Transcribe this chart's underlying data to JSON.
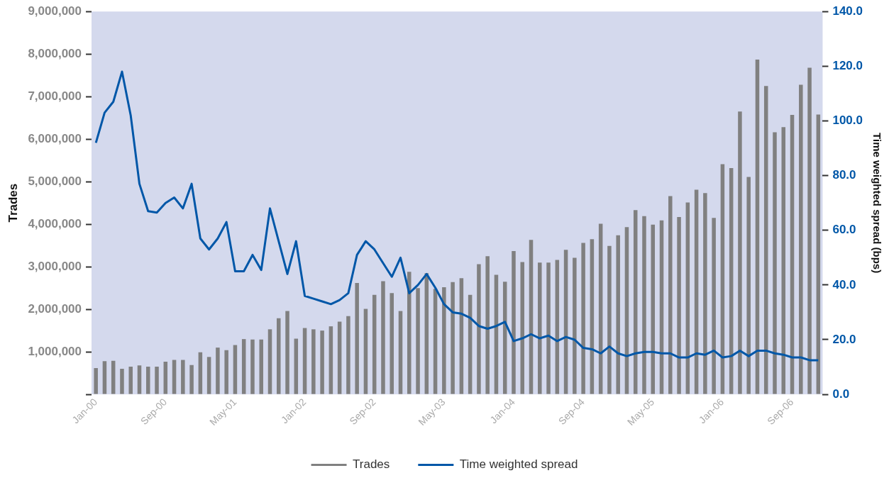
{
  "chart_data": {
    "type": "bar",
    "ylabel": "Trades",
    "y2label": "Time weighted spread (bps)",
    "categories": [
      "Jan-00",
      null,
      null,
      null,
      null,
      null,
      null,
      null,
      "Sep-00",
      null,
      null,
      null,
      null,
      null,
      null,
      null,
      "May-01",
      null,
      null,
      null,
      null,
      null,
      null,
      null,
      "Jan-02",
      null,
      null,
      null,
      null,
      null,
      null,
      null,
      "Sep-02",
      null,
      null,
      null,
      null,
      null,
      null,
      null,
      "May-03",
      null,
      null,
      null,
      null,
      null,
      null,
      null,
      "Jan-04",
      null,
      null,
      null,
      null,
      null,
      null,
      null,
      "Sep-04",
      null,
      null,
      null,
      null,
      null,
      null,
      null,
      "May-05",
      null,
      null,
      null,
      null,
      null,
      null,
      null,
      "Jan-06",
      null,
      null,
      null,
      null,
      null,
      null,
      null,
      "Sep-06",
      null,
      null,
      null
    ],
    "series": [
      {
        "name": "Trades",
        "color": "#808080",
        "values": [
          620000,
          780000,
          790000,
          600000,
          650000,
          680000,
          650000,
          650000,
          770000,
          810000,
          810000,
          690000,
          990000,
          880000,
          1100000,
          1040000,
          1160000,
          1300000,
          1290000,
          1290000,
          1530000,
          1790000,
          1960000,
          1310000,
          1560000,
          1530000,
          1500000,
          1600000,
          1710000,
          1840000,
          2620000,
          2010000,
          2340000,
          2660000,
          2380000,
          1960000,
          2880000,
          2500000,
          2850000,
          2480000,
          2520000,
          2640000,
          2730000,
          2340000,
          3060000,
          3250000,
          2810000,
          2650000,
          3370000,
          3110000,
          3630000,
          3100000,
          3100000,
          3160000,
          3400000,
          3210000,
          3560000,
          3650000,
          4010000,
          3490000,
          3740000,
          3930000,
          4330000,
          4190000,
          3990000,
          4090000,
          4660000,
          4170000,
          4510000,
          4810000,
          4730000,
          4150000,
          5410000,
          5320000,
          6650000,
          5110000,
          7870000,
          7250000,
          6160000,
          6280000,
          6570000,
          7280000,
          7680000,
          6580000
        ]
      },
      {
        "name": "Time weighted spread",
        "type": "line",
        "axis": "y2",
        "color": "#0057a8",
        "values": [
          92,
          103,
          107,
          118,
          102,
          77,
          67,
          66.5,
          70,
          72,
          68,
          77,
          57,
          53,
          57,
          63,
          45,
          45,
          51,
          45.5,
          68,
          56,
          44,
          56,
          36,
          35,
          34,
          33,
          34.5,
          37,
          51,
          56,
          53,
          48,
          43,
          50,
          37,
          40,
          44,
          39,
          33,
          30,
          29.5,
          28,
          25,
          24,
          25,
          26.5,
          19.5,
          20.5,
          22,
          20.5,
          21.5,
          19.5,
          21,
          20,
          17,
          16.5,
          15,
          17.5,
          15,
          14,
          15,
          15.5,
          15.5,
          15,
          15,
          13.5,
          13.5,
          15,
          14.5,
          16,
          13.5,
          14,
          16,
          14,
          16,
          16,
          15,
          14.5,
          13.5,
          13.5,
          12.5,
          12.5
        ]
      }
    ],
    "ylim": [
      0,
      9000000
    ],
    "yticks": [
      {
        "value": 0,
        "label": null
      },
      {
        "value": 1000000,
        "label": "1,000,000"
      },
      {
        "value": 2000000,
        "label": "2,000,000"
      },
      {
        "value": 3000000,
        "label": "3,000,000"
      },
      {
        "value": 4000000,
        "label": "4,000,000"
      },
      {
        "value": 5000000,
        "label": "5,000,000"
      },
      {
        "value": 6000000,
        "label": "6,000,000"
      },
      {
        "value": 7000000,
        "label": "7,000,000"
      },
      {
        "value": 8000000,
        "label": "8,000,000"
      },
      {
        "value": 9000000,
        "label": "9,000,000"
      }
    ],
    "y2lim": [
      0,
      140
    ],
    "y2ticks": [
      {
        "value": 0,
        "label": "0.0"
      },
      {
        "value": 20,
        "label": "20.0"
      },
      {
        "value": 40,
        "label": "40.0"
      },
      {
        "value": 60,
        "label": "60.0"
      },
      {
        "value": 80,
        "label": "80.0"
      },
      {
        "value": 100,
        "label": "100.0"
      },
      {
        "value": 120,
        "label": "120.0"
      },
      {
        "value": 140,
        "label": "140.0"
      }
    ],
    "grid": false,
    "legend": "bottom",
    "marker": "none",
    "line_style": "solid"
  }
}
